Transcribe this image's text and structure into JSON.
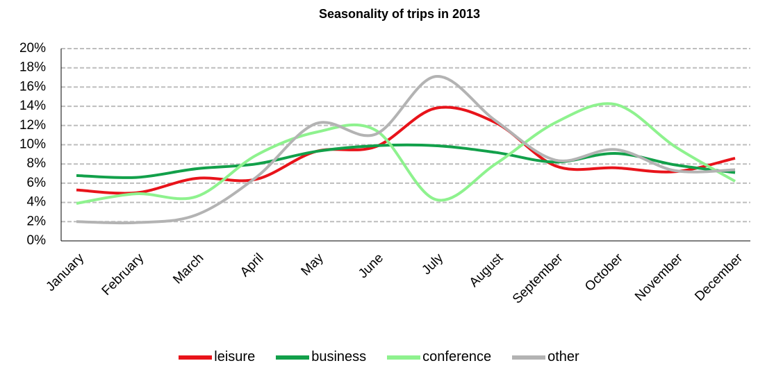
{
  "chart_data": {
    "type": "line",
    "title": "Seasonality of trips in 2013",
    "categories": [
      "January",
      "February",
      "March",
      "April",
      "May",
      "June",
      "July",
      "August",
      "September",
      "October",
      "November",
      "December"
    ],
    "series": [
      {
        "name": "leisure",
        "color": "#e8131a",
        "values": [
          5.3,
          5.0,
          6.5,
          6.4,
          9.3,
          9.8,
          13.8,
          12.3,
          7.8,
          7.6,
          7.2,
          8.6
        ]
      },
      {
        "name": "business",
        "color": "#12a04a",
        "values": [
          6.8,
          6.6,
          7.5,
          8.0,
          9.3,
          9.9,
          9.9,
          9.2,
          8.2,
          9.1,
          7.9,
          7.1
        ]
      },
      {
        "name": "conference",
        "color": "#8ef28e",
        "values": [
          3.9,
          4.9,
          4.6,
          8.9,
          11.3,
          11.5,
          4.3,
          8.0,
          12.3,
          14.2,
          9.8,
          6.2
        ]
      },
      {
        "name": "other",
        "color": "#b3b3b3",
        "values": [
          2.0,
          1.9,
          2.7,
          6.6,
          12.2,
          11.1,
          17.1,
          12.5,
          8.4,
          9.5,
          7.3,
          7.4
        ]
      }
    ],
    "ylim": [
      0,
      20
    ],
    "yticks": [
      {
        "value": 0,
        "label": "0%"
      },
      {
        "value": 2,
        "label": "2%"
      },
      {
        "value": 4,
        "label": "4%"
      },
      {
        "value": 6,
        "label": "6%"
      },
      {
        "value": 8,
        "label": "8%"
      },
      {
        "value": 10,
        "label": "10%"
      },
      {
        "value": 12,
        "label": "12%"
      },
      {
        "value": 14,
        "label": "14%"
      },
      {
        "value": 16,
        "label": "16%"
      },
      {
        "value": 18,
        "label": "18%"
      },
      {
        "value": 20,
        "label": "20%"
      }
    ],
    "grid": true,
    "legend": "bottom"
  }
}
